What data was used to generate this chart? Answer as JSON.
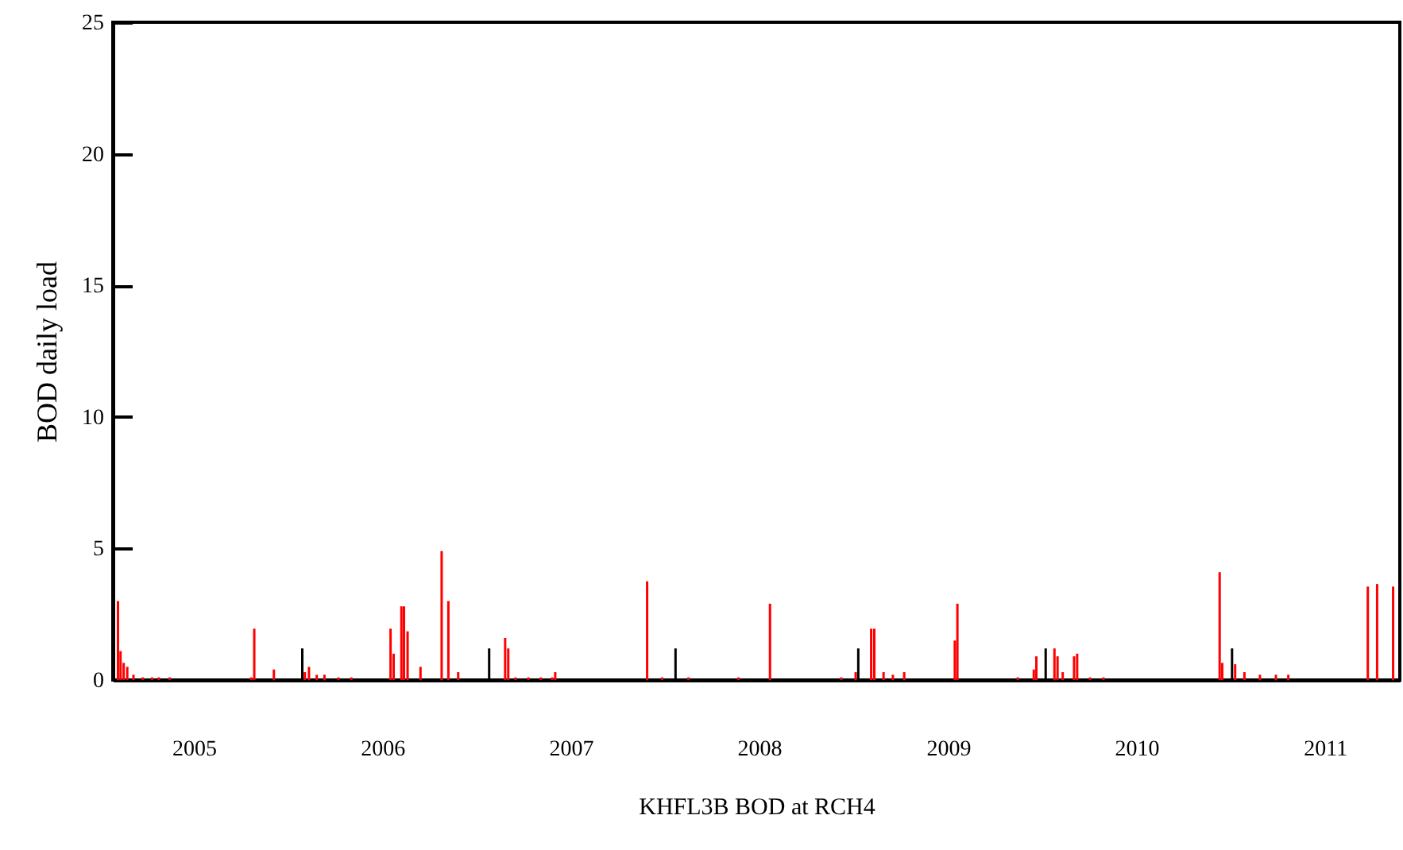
{
  "chart_data": {
    "type": "bar",
    "xlabel": "KHFL3B BOD at RCH4",
    "ylabel": "BOD daily load",
    "xlim": [
      "2004-07-28",
      "2011-05-26"
    ],
    "xticks": [
      {
        "value": "2005",
        "label": "2005"
      },
      {
        "value": "2006",
        "label": "2006"
      },
      {
        "value": "2007",
        "label": "2007"
      },
      {
        "value": "2008",
        "label": "2008"
      },
      {
        "value": "2009",
        "label": "2009"
      },
      {
        "value": "2010",
        "label": "2010"
      },
      {
        "value": "2011",
        "label": "2011"
      }
    ],
    "ylim": [
      0,
      25
    ],
    "yticks": [
      0,
      5,
      10,
      15,
      20,
      25
    ],
    "grid": false,
    "series": [
      {
        "color": "#ff0000",
        "x": [
          "2004-08-07",
          "2004-08-12",
          "2004-08-18",
          "2004-08-25",
          "2004-09-06",
          "2004-09-24",
          "2004-10-12",
          "2004-10-25",
          "2004-11-15",
          "2005-04-22",
          "2005-04-28",
          "2005-06-05",
          "2005-08-04",
          "2005-08-12",
          "2005-08-27",
          "2005-09-11",
          "2005-10-08",
          "2005-11-02",
          "2006-01-17",
          "2006-01-23",
          "2006-02-07",
          "2006-02-12",
          "2006-02-19",
          "2006-03-16",
          "2006-04-26",
          "2006-05-09",
          "2006-05-28",
          "2006-08-27",
          "2006-09-02",
          "2006-09-16",
          "2006-10-11",
          "2006-11-04",
          "2006-11-26",
          "2006-12-02",
          "2007-05-29",
          "2007-06-27",
          "2007-08-17",
          "2007-11-22",
          "2008-01-22",
          "2008-06-08",
          "2008-07-06",
          "2008-08-05",
          "2008-08-11",
          "2008-08-29",
          "2008-09-16",
          "2008-10-08",
          "2009-01-14",
          "2009-01-19",
          "2009-05-16",
          "2009-06-16",
          "2009-06-21",
          "2009-07-26",
          "2009-08-01",
          "2009-08-11",
          "2009-09-02",
          "2009-09-08",
          "2009-10-03",
          "2009-10-29",
          "2010-06-11",
          "2010-06-16",
          "2010-07-11",
          "2010-07-29",
          "2010-08-28",
          "2010-09-28",
          "2010-10-22",
          "2011-03-25",
          "2011-04-12",
          "2011-05-13"
        ],
        "values": [
          3.0,
          1.1,
          0.65,
          0.5,
          0.2,
          0.1,
          0.1,
          0.1,
          0.1,
          0.1,
          1.95,
          0.4,
          0.3,
          0.5,
          0.2,
          0.2,
          0.1,
          0.1,
          1.95,
          1.0,
          2.8,
          2.8,
          1.85,
          0.5,
          4.9,
          3.0,
          0.3,
          1.6,
          1.2,
          0.1,
          0.1,
          0.1,
          0.1,
          0.3,
          3.75,
          0.1,
          0.1,
          0.1,
          2.9,
          0.1,
          0.3,
          1.95,
          1.95,
          0.3,
          0.2,
          0.3,
          1.5,
          2.9,
          0.1,
          0.4,
          0.9,
          1.2,
          0.9,
          0.3,
          0.9,
          1.0,
          0.1,
          0.1,
          4.1,
          0.65,
          0.6,
          0.3,
          0.2,
          0.2,
          0.2,
          3.55,
          3.65,
          3.55
        ]
      },
      {
        "color": "#000000",
        "x": [
          "2005-07-30",
          "2006-07-27",
          "2007-07-23",
          "2008-07-11",
          "2009-07-09",
          "2010-07-05"
        ],
        "values": [
          1.2,
          1.2,
          1.2,
          1.2,
          1.2,
          1.2
        ]
      }
    ]
  }
}
